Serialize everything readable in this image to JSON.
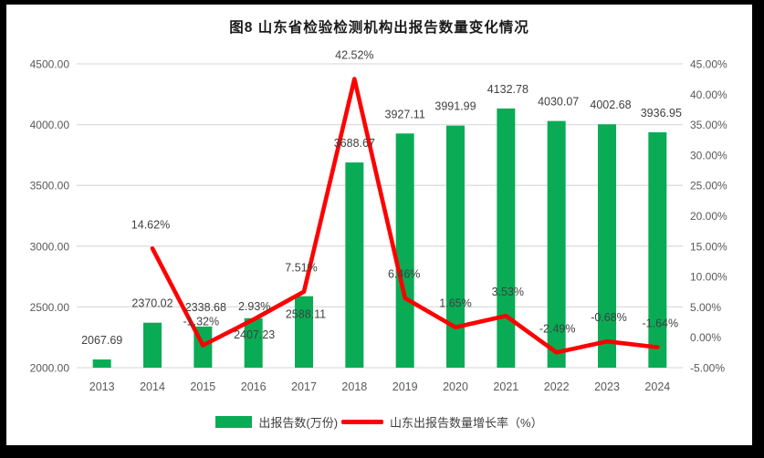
{
  "title": "图8  山东省检验检测机构出报告数量变化情况",
  "chart_data": {
    "type": "combo",
    "categories": [
      "2013",
      "2014",
      "2015",
      "2016",
      "2017",
      "2018",
      "2019",
      "2020",
      "2021",
      "2022",
      "2023",
      "2024"
    ],
    "series": [
      {
        "name": "出报告数(万份)",
        "type": "bar",
        "color": "#09ac55",
        "values": [
          2067.69,
          2370.02,
          2338.68,
          2407.23,
          2588.11,
          3688.67,
          3927.11,
          3991.99,
          4132.78,
          4030.07,
          4002.68,
          3936.95
        ]
      },
      {
        "name": "山东出报告数量增长率（%）",
        "type": "line",
        "color": "#fe0000",
        "values": [
          null,
          14.62,
          -1.32,
          2.93,
          7.51,
          42.52,
          6.46,
          1.65,
          3.53,
          -2.49,
          -0.68,
          -1.64
        ]
      }
    ],
    "left_axis": {
      "ticks": [
        "2000.00",
        "2500.00",
        "3000.00",
        "3500.00",
        "4000.00",
        "4500.00"
      ],
      "min": 2000,
      "max": 4500
    },
    "right_axis": {
      "ticks": [
        "-5.00%",
        "0.00%",
        "5.00%",
        "10.00%",
        "15.00%",
        "20.00%",
        "25.00%",
        "30.00%",
        "35.00%",
        "40.00%",
        "45.00%"
      ],
      "min": -5,
      "max": 45
    },
    "grid": true,
    "legend_position": "bottom",
    "legend": [
      "出报告数(万份)",
      "山东出报告数量增长率（%）"
    ],
    "grid_color": "#dddddd"
  }
}
